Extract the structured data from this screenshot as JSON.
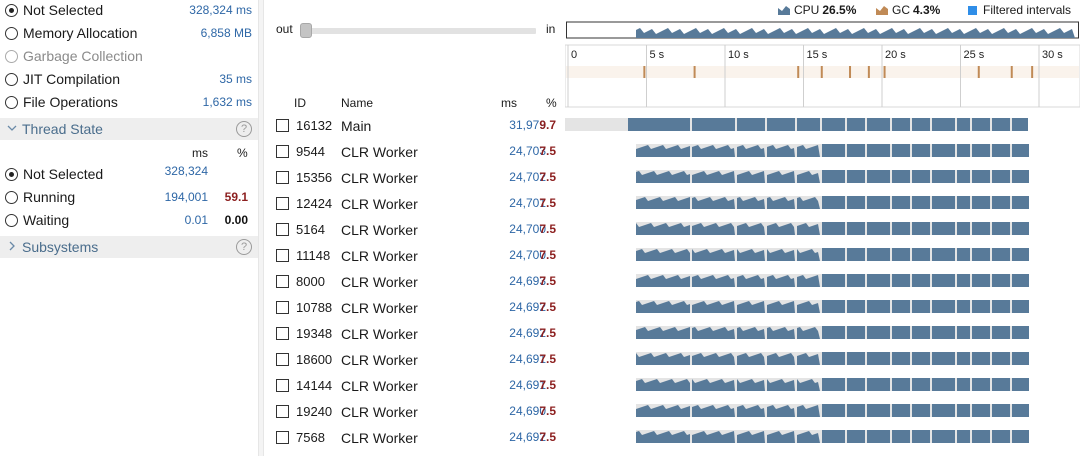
{
  "top_options": [
    {
      "label": "Not Selected",
      "value": "328,324 ms",
      "checked": true,
      "disabled": false
    },
    {
      "label": "Memory Allocation",
      "value": "6,858 MB",
      "checked": false,
      "disabled": false
    },
    {
      "label": "Garbage Collection",
      "value": "",
      "checked": false,
      "disabled": true
    },
    {
      "label": "JIT Compilation",
      "value": "35 ms",
      "checked": false,
      "disabled": false
    },
    {
      "label": "File Operations",
      "value": "1,632 ms",
      "checked": false,
      "disabled": false
    }
  ],
  "thread_state": {
    "title": "Thread State",
    "help": "?",
    "col_ms": "ms",
    "col_pct": "%",
    "items": [
      {
        "label": "Not Selected",
        "ms": "328,324",
        "pct": "",
        "checked": true
      },
      {
        "label": "Running",
        "ms": "194,001",
        "pct": "59.1",
        "checked": false
      },
      {
        "label": "Waiting",
        "ms": "0.01",
        "pct": "0.00",
        "checked": false
      }
    ]
  },
  "subsystems": {
    "title": "Subsystems",
    "help": "?"
  },
  "legend": {
    "cpu_label": "CPU",
    "cpu_value": "26.5%",
    "gc_label": "GC",
    "gc_value": "4.3%",
    "filtered_label": "Filtered intervals"
  },
  "colors": {
    "cpu": "#587a99",
    "gc": "#c08a56",
    "filtered": "#2f8ee8",
    "ms_text": "#2e67a6",
    "pct_text": "#8c1f1f"
  },
  "zoom": {
    "out_label": "out",
    "in_label": "in",
    "level": 0.0
  },
  "ruler": {
    "ticks": [
      "0",
      "5 s",
      "10 s",
      "15 s",
      "20 s",
      "25 s",
      "30 s"
    ]
  },
  "gc_events_s": [
    4.8,
    8.0,
    14.6,
    16.1,
    17.9,
    19.1,
    20.1,
    26.1,
    28.2,
    29.5
  ],
  "table": {
    "headers": {
      "id": "ID",
      "name": "Name",
      "ms": "ms",
      "pct": "%"
    },
    "rows": [
      {
        "id": "16132",
        "name": "Main",
        "ms": "31,979",
        "pct": "9.7"
      },
      {
        "id": "9544",
        "name": "CLR Worker",
        "ms": "24,703",
        "pct": "7.5"
      },
      {
        "id": "15356",
        "name": "CLR Worker",
        "ms": "24,702",
        "pct": "7.5"
      },
      {
        "id": "12424",
        "name": "CLR Worker",
        "ms": "24,701",
        "pct": "7.5"
      },
      {
        "id": "5164",
        "name": "CLR Worker",
        "ms": "24,700",
        "pct": "7.5"
      },
      {
        "id": "11148",
        "name": "CLR Worker",
        "ms": "24,700",
        "pct": "7.5"
      },
      {
        "id": "8000",
        "name": "CLR Worker",
        "ms": "24,693",
        "pct": "7.5"
      },
      {
        "id": "10788",
        "name": "CLR Worker",
        "ms": "24,692",
        "pct": "7.5"
      },
      {
        "id": "19348",
        "name": "CLR Worker",
        "ms": "24,692",
        "pct": "7.5"
      },
      {
        "id": "18600",
        "name": "CLR Worker",
        "ms": "24,691",
        "pct": "7.5"
      },
      {
        "id": "14144",
        "name": "CLR Worker",
        "ms": "24,691",
        "pct": "7.5"
      },
      {
        "id": "19240",
        "name": "CLR Worker",
        "ms": "24,690",
        "pct": "7.5"
      },
      {
        "id": "7568",
        "name": "CLR Worker",
        "ms": "24,692",
        "pct": "7.5"
      }
    ]
  }
}
